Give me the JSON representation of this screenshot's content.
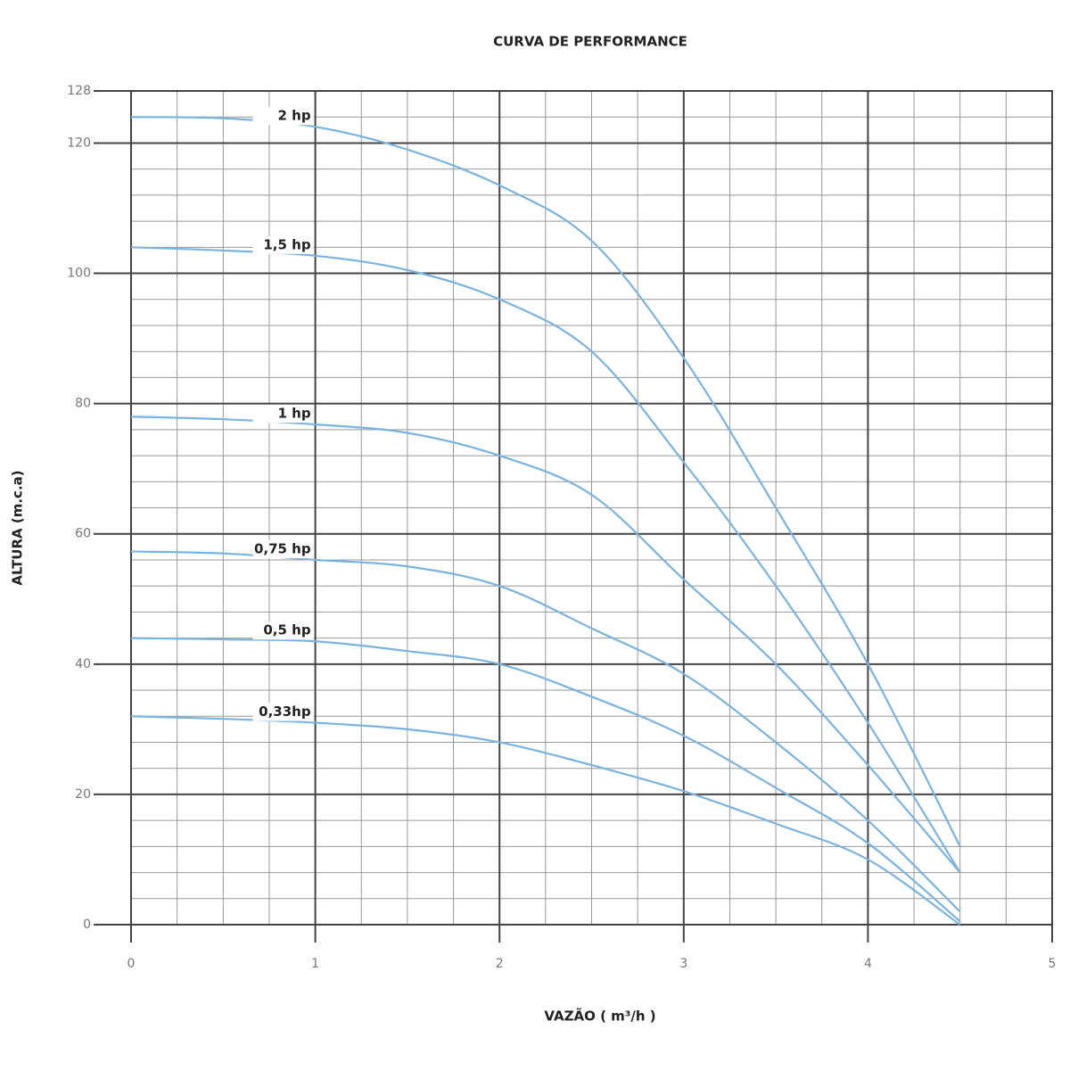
{
  "chart_data": {
    "type": "line",
    "title": "CURVA DE PERFORMANCE",
    "x_label": "VAZÃO ( m³/h )",
    "y_label": "ALTURA (m.c.a)",
    "xlim": [
      0,
      5
    ],
    "ylim": [
      0,
      128
    ],
    "xticks": [
      0,
      1,
      2,
      3,
      4,
      5
    ],
    "yticks": [
      0,
      20,
      40,
      60,
      80,
      100,
      120,
      128
    ],
    "grid": true,
    "minor_grid": {
      "x": 0.25,
      "y": 4
    },
    "x": [
      0,
      0.5,
      1,
      1.5,
      2,
      2.5,
      3,
      3.5,
      4,
      4.5
    ],
    "series": [
      {
        "name": "2 hp",
        "color": "#7ab3e0",
        "values": [
          124,
          123.8,
          122.5,
          119,
          113.5,
          105,
          87,
          64,
          40,
          12
        ]
      },
      {
        "name": "1,5 hp",
        "color": "#7ab3e0",
        "values": [
          104,
          103.5,
          102.7,
          100.5,
          96,
          88,
          71,
          52,
          31,
          8
        ]
      },
      {
        "name": "1 hp",
        "color": "#7ab3e0",
        "values": [
          78,
          77.6,
          76.8,
          75.5,
          72,
          66,
          53,
          40,
          24.5,
          8
        ]
      },
      {
        "name": "0,75 hp",
        "color": "#7ab3e0",
        "values": [
          57.3,
          57,
          56,
          55,
          52,
          45.5,
          38.5,
          28,
          16,
          2
        ]
      },
      {
        "name": "0,5 hp",
        "color": "#7ab3e0",
        "values": [
          44,
          43.8,
          43.5,
          42,
          40,
          35,
          29,
          21,
          12.5,
          0.5
        ]
      },
      {
        "name": "0,33hp",
        "color": "#7ab3e0",
        "values": [
          32,
          31.6,
          31,
          30,
          28,
          24.5,
          20.5,
          15.5,
          10,
          0
        ]
      }
    ]
  }
}
